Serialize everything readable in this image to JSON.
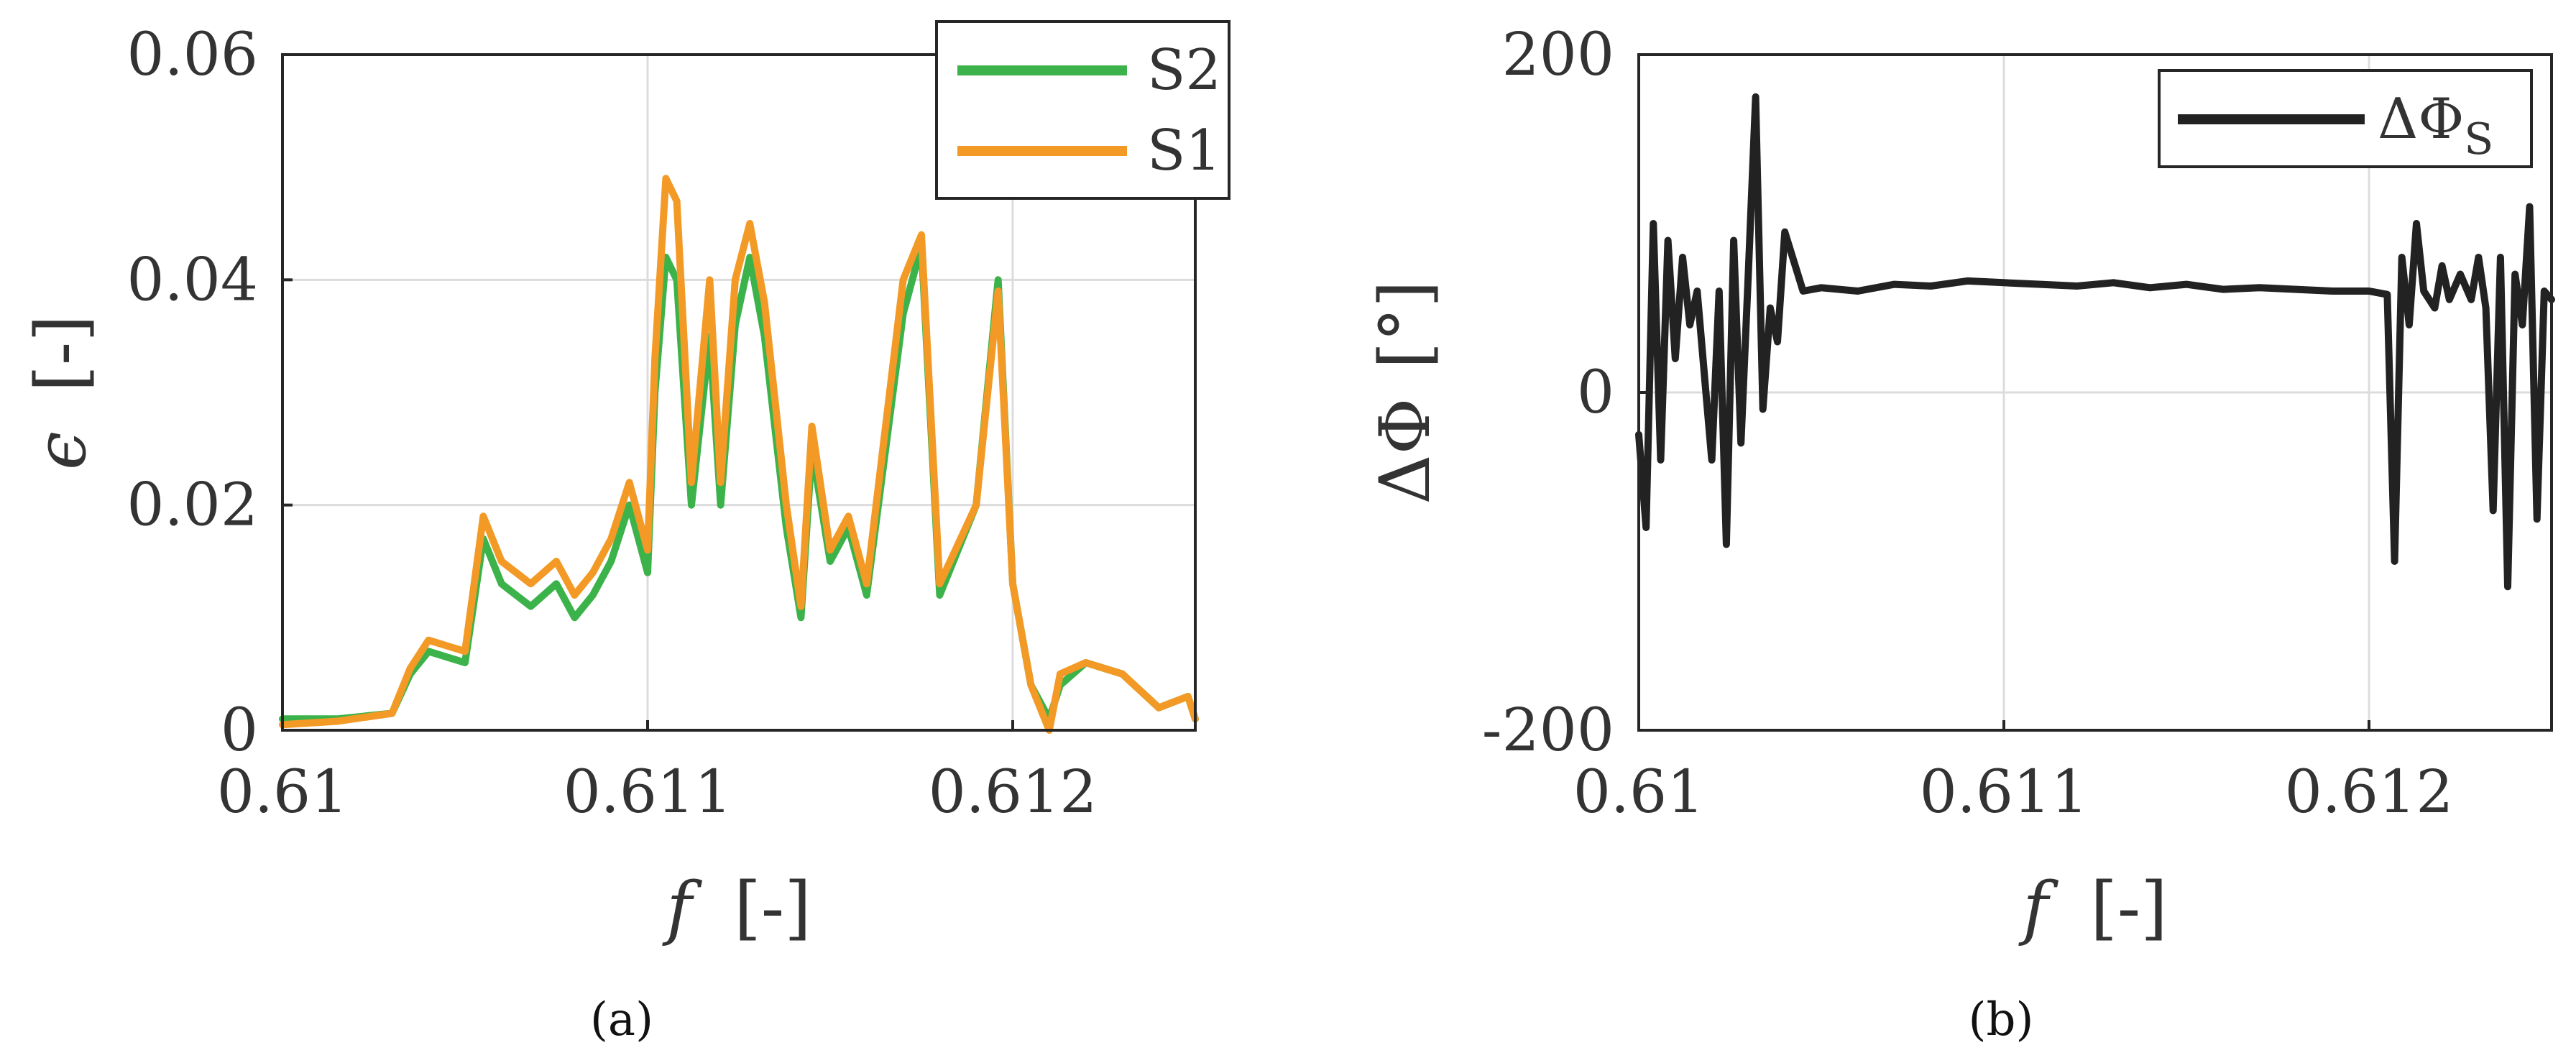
{
  "chart_data": [
    {
      "type": "line",
      "panel_label": "(a)",
      "xlabel_symbol": "f",
      "xlabel_unit": "[-]",
      "ylabel_symbol": "ϵ",
      "ylabel_unit": "[-]",
      "xlim": [
        0.61,
        0.6125
      ],
      "ylim": [
        0,
        0.06
      ],
      "x_ticks": [
        "0.61",
        "0.611",
        "0.612"
      ],
      "y_ticks": [
        "0",
        "0.02",
        "0.04",
        "0.06"
      ],
      "grid": true,
      "legend_position": "top-right",
      "series": [
        {
          "name": "S2",
          "color": "#3cb34a",
          "x": [
            0.61,
            0.61015,
            0.6103,
            0.61035,
            0.6104,
            0.6105,
            0.61055,
            0.6106,
            0.61068,
            0.61075,
            0.6108,
            0.61085,
            0.6109,
            0.61095,
            0.611,
            0.61102,
            0.61105,
            0.61108,
            0.61112,
            0.61117,
            0.6112,
            0.61124,
            0.61128,
            0.61132,
            0.61138,
            0.61142,
            0.61145,
            0.6115,
            0.61155,
            0.6116,
            0.6117,
            0.61175,
            0.6118,
            0.6119,
            0.61196,
            0.612,
            0.61205,
            0.6121,
            0.61213,
            0.6122,
            0.6123,
            0.6124,
            0.61248,
            0.6125
          ],
          "y": [
            0.001,
            0.001,
            0.0015,
            0.005,
            0.007,
            0.006,
            0.017,
            0.013,
            0.011,
            0.013,
            0.01,
            0.012,
            0.015,
            0.02,
            0.014,
            0.03,
            0.042,
            0.04,
            0.02,
            0.035,
            0.02,
            0.036,
            0.042,
            0.035,
            0.018,
            0.01,
            0.025,
            0.015,
            0.018,
            0.012,
            0.037,
            0.043,
            0.012,
            0.02,
            0.04,
            0.013,
            0.004,
            0.001,
            0.004,
            0.006,
            0.005,
            0.002,
            0.003,
            0.001
          ]
        },
        {
          "name": "S1",
          "color": "#f39a26",
          "x": [
            0.61,
            0.61015,
            0.6103,
            0.61035,
            0.6104,
            0.6105,
            0.61055,
            0.6106,
            0.61068,
            0.61075,
            0.6108,
            0.61085,
            0.6109,
            0.61095,
            0.611,
            0.61102,
            0.61105,
            0.61108,
            0.61112,
            0.61117,
            0.6112,
            0.61124,
            0.61128,
            0.61132,
            0.61138,
            0.61142,
            0.61145,
            0.6115,
            0.61155,
            0.6116,
            0.6117,
            0.61175,
            0.6118,
            0.6119,
            0.61196,
            0.612,
            0.61205,
            0.6121,
            0.61213,
            0.6122,
            0.6123,
            0.6124,
            0.61248,
            0.6125
          ],
          "y": [
            0.0005,
            0.0008,
            0.0015,
            0.0055,
            0.008,
            0.007,
            0.019,
            0.015,
            0.013,
            0.015,
            0.012,
            0.014,
            0.017,
            0.022,
            0.016,
            0.033,
            0.049,
            0.047,
            0.022,
            0.04,
            0.022,
            0.04,
            0.045,
            0.038,
            0.02,
            0.011,
            0.027,
            0.016,
            0.019,
            0.013,
            0.04,
            0.044,
            0.013,
            0.02,
            0.039,
            0.013,
            0.004,
            0.0,
            0.005,
            0.006,
            0.005,
            0.002,
            0.003,
            0.001
          ]
        }
      ]
    },
    {
      "type": "line",
      "panel_label": "(b)",
      "xlabel_symbol": "f",
      "xlabel_unit": "[-]",
      "ylabel_symbol": "ΔΦ",
      "ylabel_unit": "[°]",
      "xlim": [
        0.61,
        0.6125
      ],
      "ylim": [
        -200,
        200
      ],
      "x_ticks": [
        "0.61",
        "0.611",
        "0.612"
      ],
      "y_ticks": [
        "-200",
        "0",
        "200"
      ],
      "grid": true,
      "legend_position": "top-right",
      "series": [
        {
          "name": "ΔΦ",
          "name_subscript": "S",
          "color": "#222222",
          "x": [
            0.61,
            0.61002,
            0.61004,
            0.61006,
            0.61008,
            0.6101,
            0.61012,
            0.61014,
            0.61016,
            0.61018,
            0.6102,
            0.61022,
            0.61024,
            0.61026,
            0.61028,
            0.6103,
            0.61032,
            0.61034,
            0.61036,
            0.61038,
            0.6104,
            0.61045,
            0.6105,
            0.6106,
            0.6107,
            0.6108,
            0.6109,
            0.611,
            0.6111,
            0.6112,
            0.6113,
            0.6114,
            0.6115,
            0.6116,
            0.6117,
            0.6118,
            0.6119,
            0.612,
            0.61205,
            0.61207,
            0.61209,
            0.61211,
            0.61213,
            0.61215,
            0.61218,
            0.6122,
            0.61222,
            0.61225,
            0.61228,
            0.6123,
            0.61232,
            0.61234,
            0.61236,
            0.61238,
            0.6124,
            0.61242,
            0.61244,
            0.61246,
            0.61248,
            0.6125
          ],
          "y": [
            -25,
            -80,
            100,
            -40,
            90,
            20,
            80,
            40,
            60,
            10,
            -40,
            60,
            -90,
            90,
            -30,
            70,
            175,
            -10,
            50,
            30,
            95,
            60,
            62,
            60,
            64,
            63,
            66,
            65,
            64,
            63,
            65,
            62,
            64,
            61,
            62,
            61,
            60,
            60,
            58,
            -100,
            80,
            40,
            100,
            60,
            50,
            75,
            55,
            70,
            55,
            80,
            50,
            -70,
            80,
            -115,
            70,
            40,
            110,
            -75,
            60,
            55
          ]
        }
      ]
    }
  ]
}
